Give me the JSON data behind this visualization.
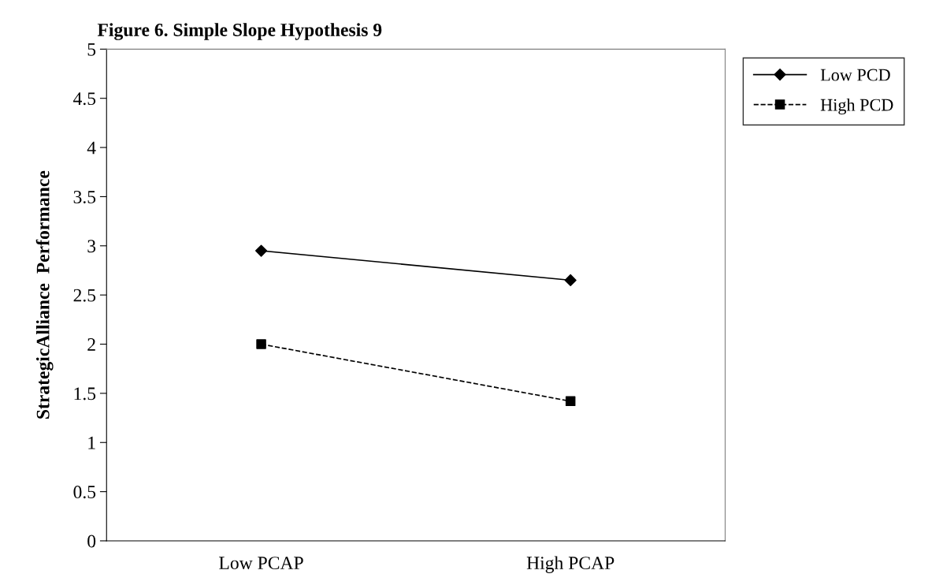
{
  "chart_data": {
    "type": "line",
    "title": "Figure 6. Simple Slope Hypothesis 9",
    "ylabel": "StrategicAlliance  Performance",
    "categories": [
      "Low PCAP",
      "High PCAP"
    ],
    "series": [
      {
        "name": "Low PCD",
        "color": "#000000",
        "values": [
          2.95,
          2.65
        ],
        "marker": "diamond",
        "line_style": "solid"
      },
      {
        "name": "High PCD",
        "color": "#000000",
        "values": [
          2.0,
          1.42
        ],
        "marker": "square",
        "line_style": "dashed"
      }
    ],
    "ylim": [
      0,
      5
    ],
    "yticks": [
      0,
      0.5,
      1,
      1.5,
      2,
      2.5,
      3,
      3.5,
      4,
      4.5,
      5
    ],
    "grid": false,
    "legend": "top right"
  }
}
